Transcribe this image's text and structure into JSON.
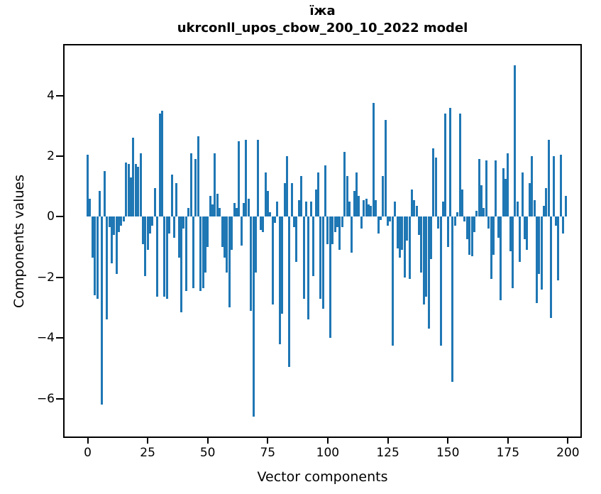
{
  "figure": {
    "title": "їжа",
    "subtitle": "ukrconll_upos_cbow_200_10_2022 model"
  },
  "chart_data": {
    "type": "bar",
    "title": "їжа",
    "subtitle": "ukrconll_upos_cbow_200_10_2022 model",
    "xlabel": "Vector components",
    "ylabel": "Components values",
    "x_ticks": [
      0,
      25,
      50,
      75,
      100,
      125,
      150,
      175,
      200
    ],
    "y_ticks": [
      4,
      2,
      0,
      -2,
      -4,
      -6
    ],
    "xlim": [
      -10.2,
      205.8
    ],
    "ylim": [
      -7.3,
      5.7
    ],
    "grid": false,
    "legend": "none",
    "bar_color": "#1f77b4",
    "n_components": 200,
    "values": [
      2.05,
      0.6,
      -1.35,
      -2.6,
      -2.7,
      0.85,
      -6.2,
      1.5,
      -3.4,
      -0.35,
      -1.55,
      -0.6,
      -1.9,
      -0.5,
      -0.3,
      -0.15,
      1.8,
      1.75,
      1.3,
      2.6,
      1.75,
      1.65,
      2.1,
      -0.9,
      -1.95,
      -1.1,
      -0.55,
      -0.3,
      0.95,
      -2.65,
      3.4,
      3.5,
      -2.65,
      -2.7,
      -0.55,
      1.4,
      -0.7,
      1.1,
      -1.35,
      -3.15,
      -0.4,
      -2.45,
      0.3,
      2.1,
      -2.35,
      1.9,
      2.65,
      -2.45,
      -2.35,
      -1.85,
      -1.0,
      0.7,
      0.4,
      2.1,
      0.75,
      0.3,
      -1.0,
      -1.35,
      -1.85,
      -3.0,
      -1.1,
      0.45,
      0.3,
      2.5,
      -0.95,
      0.45,
      2.55,
      0.6,
      -3.1,
      -6.6,
      -1.85,
      2.55,
      -0.45,
      -0.5,
      1.45,
      0.85,
      0.15,
      -2.9,
      -0.2,
      0.5,
      -4.2,
      -3.2,
      1.1,
      2.0,
      -4.95,
      1.1,
      -0.35,
      -1.5,
      0.55,
      1.35,
      -2.7,
      0.5,
      -3.4,
      0.5,
      -1.95,
      0.9,
      1.45,
      -2.7,
      -3.05,
      1.7,
      -0.9,
      -4.0,
      -0.9,
      -0.5,
      -0.35,
      -1.1,
      -0.35,
      2.15,
      1.35,
      0.5,
      -1.2,
      0.85,
      1.45,
      0.7,
      -0.4,
      0.55,
      0.6,
      0.4,
      0.35,
      3.75,
      0.55,
      -0.55,
      -0.1,
      1.35,
      3.2,
      -0.3,
      -0.15,
      -4.25,
      0.5,
      -1.05,
      -1.35,
      -1.1,
      -2.0,
      -0.8,
      -2.05,
      0.9,
      0.55,
      0.35,
      -0.6,
      -1.85,
      -2.9,
      -2.65,
      -3.7,
      -1.4,
      2.25,
      1.95,
      -0.4,
      -4.25,
      0.5,
      3.4,
      -1.0,
      3.6,
      -5.45,
      -0.3,
      0.15,
      3.4,
      0.9,
      -0.15,
      -0.75,
      -1.25,
      -1.3,
      -0.5,
      0.2,
      1.9,
      1.05,
      0.3,
      1.85,
      -0.4,
      -2.05,
      -1.25,
      1.85,
      -0.7,
      -2.75,
      1.6,
      1.25,
      2.1,
      -1.15,
      -2.35,
      5.0,
      0.5,
      -1.5,
      1.45,
      -0.75,
      -1.1,
      1.1,
      2.0,
      0.55,
      -2.85,
      -1.9,
      -2.4,
      0.35,
      0.95,
      2.55,
      -3.35,
      2.0,
      -0.3,
      -2.1,
      2.05,
      -0.55,
      0.7
    ]
  }
}
